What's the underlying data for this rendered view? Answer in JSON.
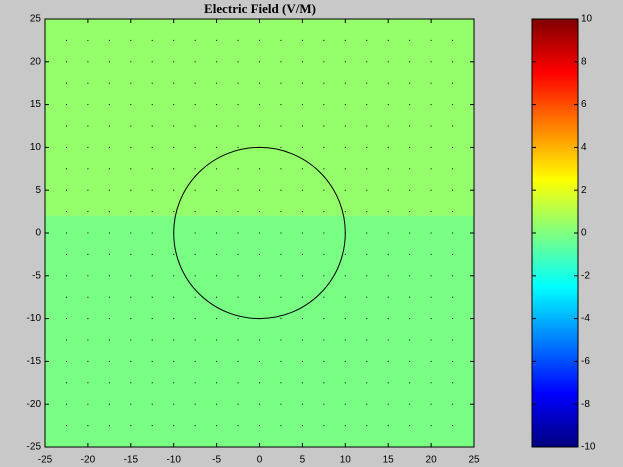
{
  "chart_data": {
    "type": "field",
    "title": "Electric Field (V/M)",
    "xlim": [
      -25,
      25
    ],
    "xticks": [
      -25,
      -20,
      -15,
      -10,
      -5,
      0,
      5,
      10,
      15,
      20,
      25
    ],
    "ylim": [
      -25,
      25
    ],
    "yticks": [
      -25,
      -20,
      -15,
      -10,
      -5,
      0,
      5,
      10,
      15,
      20,
      25
    ],
    "colormap": "jet",
    "clim": [
      -10,
      10
    ],
    "cticks": [
      -10,
      -8,
      -6,
      -4,
      -2,
      0,
      2,
      4,
      6,
      8,
      10
    ],
    "regions": [
      {
        "y": [
          2,
          25
        ],
        "value": 0.4
      },
      {
        "y": [
          -25,
          2
        ],
        "value": -0.1
      }
    ],
    "circle": {
      "center": [
        0,
        0
      ],
      "radius": 10,
      "color": "#000000"
    },
    "quiver_step": 2.5
  }
}
